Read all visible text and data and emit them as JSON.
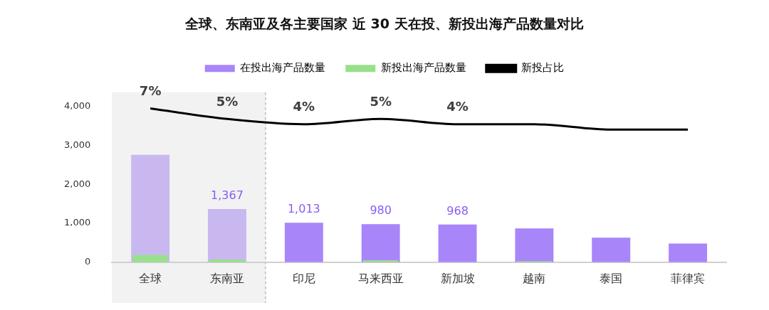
{
  "chart_data": {
    "type": "bar",
    "title": "全球、东南亚及各主要国家 近 30 天在投、新投出海产品数量对比",
    "categories": [
      "全球",
      "东南亚",
      "印尼",
      "马来西亚",
      "新加坡",
      "越南",
      "泰国",
      "菲律宾"
    ],
    "series": [
      {
        "name": "在投出海产品数量",
        "color": "#a985fa",
        "colors": [
          "#c9b8f0",
          "#c9b8f0",
          "#a985fa",
          "#a985fa",
          "#a985fa",
          "#a985fa",
          "#a985fa",
          "#a985fa"
        ],
        "values": [
          2760,
          1367,
          1013,
          980,
          968,
          870,
          630,
          480
        ],
        "value_labels": [
          null,
          "1,367",
          "1,013",
          "980",
          "968",
          null,
          null,
          null
        ]
      },
      {
        "name": "新投出海产品数量",
        "color": "#98e08a",
        "values": [
          190,
          70,
          null,
          50,
          null,
          30,
          null,
          null
        ]
      },
      {
        "name": "新投占比",
        "type": "line",
        "axis": "y2",
        "color": "#000000",
        "values": [
          7,
          5,
          4,
          5,
          4,
          4,
          3,
          3
        ],
        "value_labels": [
          "7%",
          "5%",
          "4%",
          "5%",
          "4%",
          null,
          null,
          null
        ]
      }
    ],
    "ylim": [
      0,
      4000
    ],
    "yticks": [
      0,
      {
        "value": 1000,
        "label": "1,000"
      },
      {
        "value": 2000,
        "label": "2,000"
      },
      {
        "value": 3000,
        "label": "3,000"
      },
      {
        "value": 4000,
        "label": "4,000"
      }
    ],
    "bands": [
      {
        "axis": "x",
        "from": "全球",
        "to": "东南亚",
        "color": "#f2f2f2"
      }
    ],
    "grid": false,
    "legend": "top",
    "marker": "none",
    "line_style": "solid"
  }
}
